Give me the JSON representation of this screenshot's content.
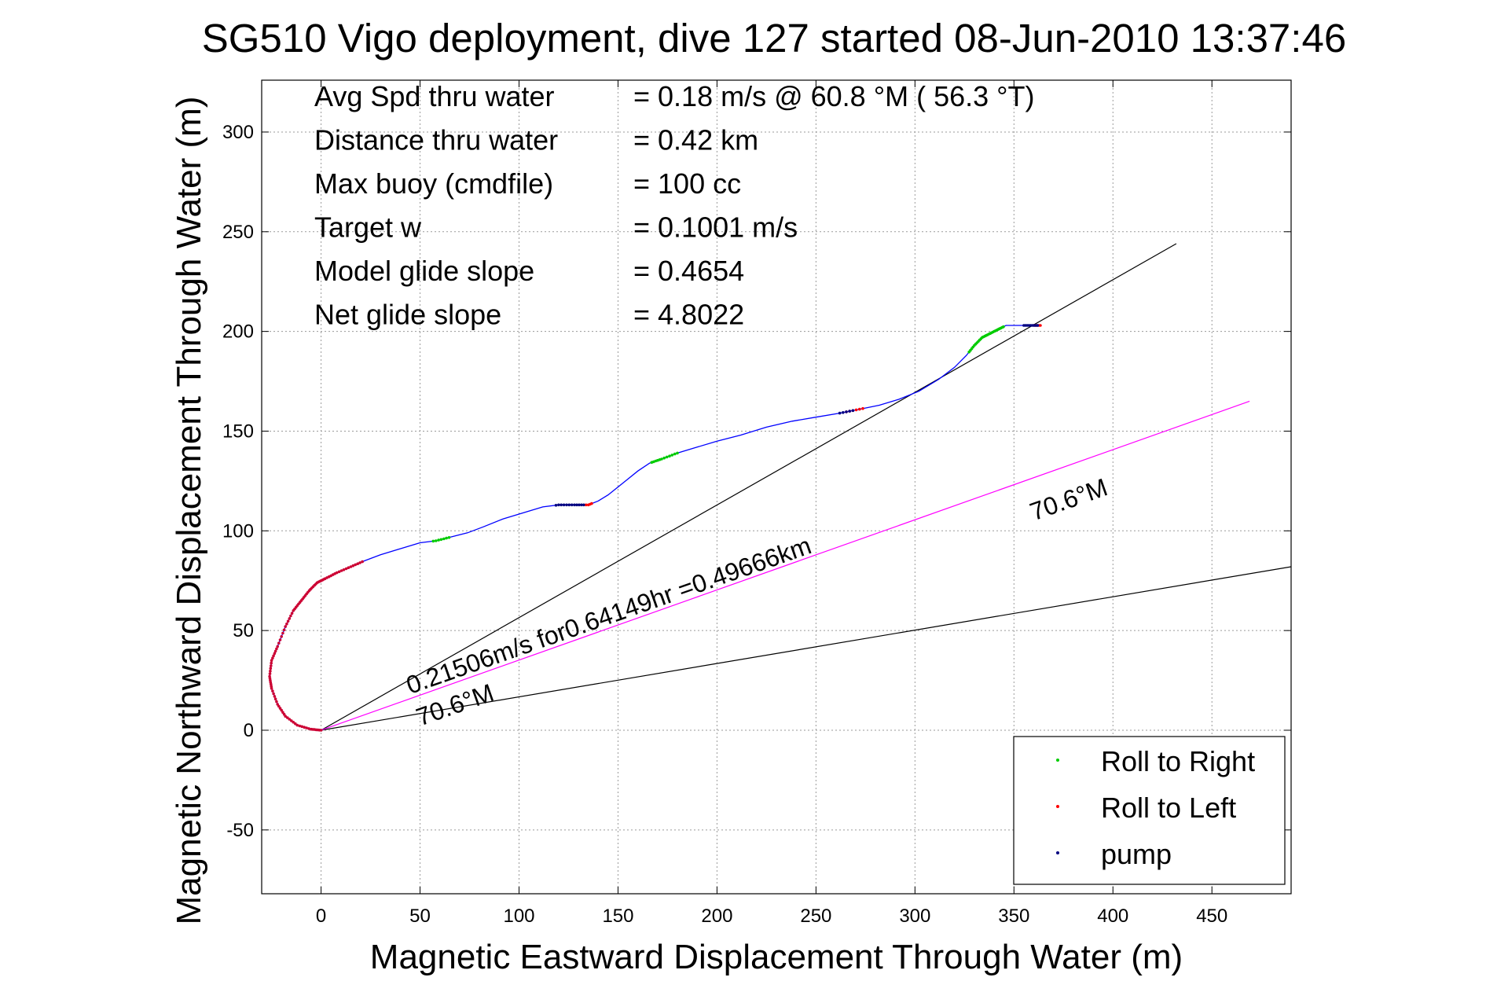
{
  "chart_data": {
    "type": "line",
    "title": "SG510 Vigo deployment, dive 127 started 08-Jun-2010 13:37:46",
    "xlabel": "Magnetic Eastward Displacement Through Water (m)",
    "ylabel": "Magnetic Northward Displacement Through Water (m)",
    "xlim": [
      -30,
      490
    ],
    "ylim": [
      -82,
      326
    ],
    "xticks": [
      0,
      50,
      100,
      150,
      200,
      250,
      300,
      350,
      400,
      450
    ],
    "yticks": [
      -50,
      0,
      50,
      100,
      150,
      200,
      250,
      300
    ],
    "xtick_labels": [
      "0",
      "50",
      "100",
      "150",
      "200",
      "250",
      "300",
      "350",
      "400",
      "450"
    ],
    "ytick_labels": [
      "-50",
      "0",
      "50",
      "100",
      "150",
      "200",
      "250",
      "300"
    ],
    "grid": true,
    "stats": [
      {
        "label": "Avg Spd thru water",
        "value": "=  0.18 m/s @  60.8 °M ( 56.3 °T)"
      },
      {
        "label": "Distance thru water",
        "value": "=  0.42 km"
      },
      {
        "label": "Max buoy (cmdfile)",
        "value": "= 100 cc"
      },
      {
        "label": "Target w",
        "value": "= 0.1001 m/s"
      },
      {
        "label": "Model glide slope",
        "value": "= 0.4654"
      },
      {
        "label": "Net glide slope",
        "value": "= 4.8022"
      }
    ],
    "track": {
      "color": "#0000ff",
      "x": [
        0,
        -5,
        -12,
        -18,
        -22,
        -25,
        -26,
        -25,
        -22,
        -18,
        -14,
        -10,
        -6,
        -2,
        2,
        8,
        15,
        22,
        30,
        40,
        50,
        58,
        66,
        74,
        82,
        92,
        102,
        112,
        120,
        128,
        135,
        140,
        145,
        150,
        155,
        160,
        166,
        172,
        180,
        190,
        200,
        212,
        225,
        238,
        250,
        262,
        272,
        282,
        292,
        302,
        312,
        320,
        326,
        330,
        334,
        338,
        342,
        346,
        350,
        355,
        360,
        364
      ],
      "y": [
        0,
        0.5,
        2.5,
        7,
        13,
        21,
        27,
        35,
        42,
        52,
        60,
        65,
        70,
        74,
        76,
        79,
        82,
        85,
        88,
        91,
        94,
        95,
        97,
        99,
        102,
        106,
        109,
        112,
        113,
        113,
        113,
        115,
        118,
        122,
        126,
        130,
        134,
        136,
        139,
        142,
        145,
        148,
        152,
        155,
        157,
        159,
        161,
        163,
        166,
        170,
        176,
        182,
        188,
        193,
        197,
        199,
        201,
        203,
        203,
        203,
        203,
        203
      ]
    },
    "roll_right_segments": [
      [
        56,
        65
      ],
      [
        167,
        180
      ],
      [
        327,
        345
      ]
    ],
    "roll_left_segments": [
      [
        -26,
        25
      ],
      [
        133,
        137
      ],
      [
        265,
        275
      ],
      [
        360,
        365
      ]
    ],
    "pump_segments": [
      [
        118,
        133
      ],
      [
        262,
        270
      ],
      [
        355,
        362
      ]
    ],
    "reference_lines": [
      {
        "x": [
          0,
          432
        ],
        "y": [
          0,
          244
        ],
        "color": "#000000"
      },
      {
        "x": [
          0,
          490
        ],
        "y": [
          0,
          82
        ],
        "color": "#000000"
      },
      {
        "x": [
          0,
          469
        ],
        "y": [
          0,
          165
        ],
        "color": "#ff00ff"
      }
    ],
    "annotations": [
      {
        "text": "0.21506m/s for0.64149hr =0.49666km",
        "x": 45,
        "y": 18,
        "rotation": -19.4
      },
      {
        "text": "70.6°M",
        "x": 50,
        "y": 2,
        "rotation": -19.4
      },
      {
        "text": "70.6°M",
        "x": 360,
        "y": 105,
        "rotation": -19.4
      }
    ],
    "legend": {
      "position": "bottom-right",
      "items": [
        {
          "label": "Roll to Right",
          "color": "#00cc00"
        },
        {
          "label": "Roll to Left",
          "color": "#ff0000"
        },
        {
          "label": "pump",
          "color": "#000080"
        }
      ]
    }
  }
}
